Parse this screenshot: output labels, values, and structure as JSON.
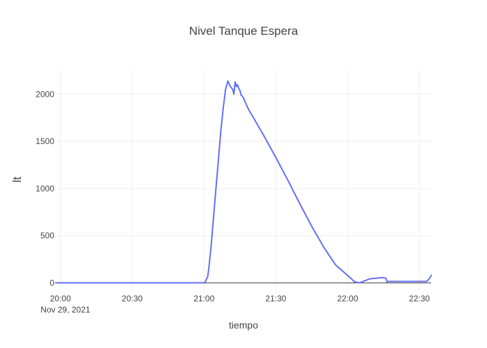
{
  "chart_data": {
    "type": "line",
    "title": "Nivel Tanque Espera",
    "xlabel": "tiempo",
    "ylabel": "lt",
    "x_axis": {
      "type": "time",
      "range": [
        "2021-11-29 19:58",
        "2021-11-29 22:35"
      ],
      "ticks": [
        "20:00",
        "20:30",
        "21:00",
        "21:30",
        "22:00",
        "22:30"
      ],
      "date_label": "Nov 29, 2021"
    },
    "y_axis": {
      "range": [
        -100,
        2260
      ],
      "ticks": [
        0,
        500,
        1000,
        1500,
        2000
      ]
    },
    "grid": true,
    "colors": {
      "line": "#636efa",
      "zeroline": "#444444",
      "grid": "#eeeeee"
    },
    "series": [
      {
        "x": [
          "2021-11-29 19:58",
          "2021-11-29 20:30",
          "2021-11-29 21:00",
          "2021-11-29 21:00:30",
          "2021-11-29 21:01",
          "2021-11-29 21:01:30",
          "2021-11-29 21:02",
          "2021-11-29 21:03",
          "2021-11-29 21:04",
          "2021-11-29 21:05",
          "2021-11-29 21:06",
          "2021-11-29 21:07",
          "2021-11-29 21:08",
          "2021-11-29 21:09",
          "2021-11-29 21:10",
          "2021-11-29 21:11",
          "2021-11-29 21:12",
          "2021-11-29 21:12:30",
          "2021-11-29 21:13",
          "2021-11-29 21:13:30",
          "2021-11-29 21:14",
          "2021-11-29 21:14:30",
          "2021-11-29 21:15",
          "2021-11-29 21:15:30",
          "2021-11-29 21:16",
          "2021-11-29 21:16:30",
          "2021-11-29 21:17",
          "2021-11-29 21:17:30",
          "2021-11-29 21:18",
          "2021-11-29 21:19",
          "2021-11-29 21:20",
          "2021-11-29 21:25",
          "2021-11-29 21:30",
          "2021-11-29 21:35",
          "2021-11-29 21:40",
          "2021-11-29 21:45",
          "2021-11-29 21:50",
          "2021-11-29 21:55",
          "2021-11-29 22:00",
          "2021-11-29 22:03",
          "2021-11-29 22:05",
          "2021-11-29 22:06",
          "2021-11-29 22:07",
          "2021-11-29 22:08",
          "2021-11-29 22:09",
          "2021-11-29 22:10",
          "2021-11-29 22:12",
          "2021-11-29 22:14",
          "2021-11-29 22:15",
          "2021-11-29 22:16",
          "2021-11-29 22:16:30",
          "2021-11-29 22:17",
          "2021-11-29 22:20",
          "2021-11-29 22:25",
          "2021-11-29 22:30",
          "2021-11-29 22:33",
          "2021-11-29 22:34",
          "2021-11-29 22:35"
        ],
        "y": [
          0,
          0,
          0,
          10,
          40,
          60,
          150,
          400,
          700,
          1000,
          1300,
          1600,
          1850,
          2050,
          2140,
          2080,
          2050,
          2000,
          2130,
          2080,
          2100,
          2060,
          2040,
          1990,
          1980,
          1960,
          1930,
          1900,
          1870,
          1820,
          1780,
          1560,
          1330,
          1090,
          840,
          600,
          380,
          190,
          80,
          10,
          0,
          10,
          20,
          30,
          40,
          45,
          50,
          55,
          55,
          50,
          10,
          15,
          15,
          15,
          15,
          15,
          40,
          80
        ]
      }
    ]
  }
}
